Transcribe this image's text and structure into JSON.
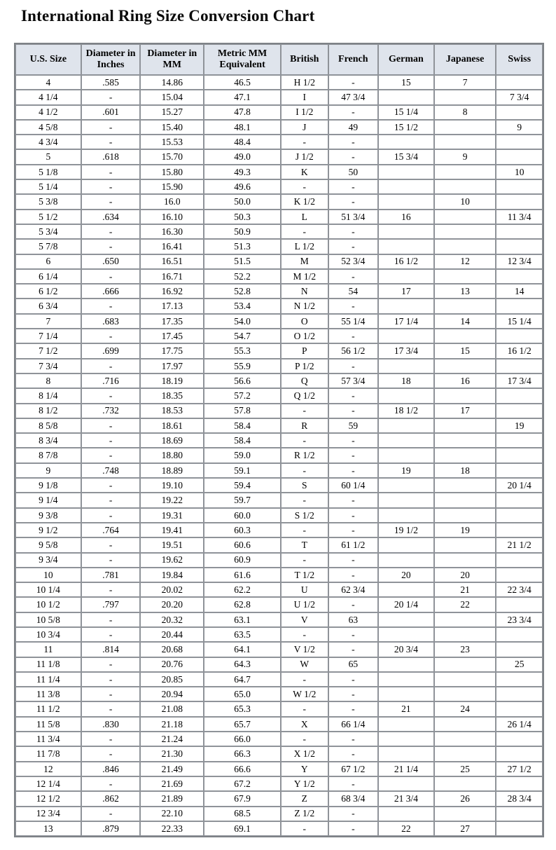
{
  "title": "International Ring Size Conversion Chart",
  "colors": {
    "header_background": "#dfe4ec",
    "grid_border": "#8f9399",
    "text": "#000000"
  },
  "chart_data": {
    "type": "table",
    "title": "International Ring Size Conversion Chart",
    "columns": [
      "U.S. Size",
      "Diameter in Inches",
      "Diameter in MM",
      "Metric MM Equivalent",
      "British",
      "French",
      "German",
      "Japanese",
      "Swiss"
    ],
    "rows": [
      [
        "4",
        ".585",
        "14.86",
        "46.5",
        "H 1/2",
        "-",
        "15",
        "7",
        ""
      ],
      [
        "4 1/4",
        "-",
        "15.04",
        "47.1",
        "I",
        "47 3/4",
        "",
        "",
        "7 3/4"
      ],
      [
        "4 1/2",
        ".601",
        "15.27",
        "47.8",
        "I 1/2",
        "-",
        "15 1/4",
        "8",
        ""
      ],
      [
        "4 5/8",
        "-",
        "15.40",
        "48.1",
        "J",
        "49",
        "15 1/2",
        "",
        "9"
      ],
      [
        "4 3/4",
        "-",
        "15.53",
        "48.4",
        "-",
        "-",
        "",
        "",
        ""
      ],
      [
        "5",
        ".618",
        "15.70",
        "49.0",
        "J 1/2",
        "-",
        "15 3/4",
        "9",
        ""
      ],
      [
        "5 1/8",
        "-",
        "15.80",
        "49.3",
        "K",
        "50",
        "",
        "",
        "10"
      ],
      [
        "5 1/4",
        "-",
        "15.90",
        "49.6",
        "-",
        "-",
        "",
        "",
        ""
      ],
      [
        "5 3/8",
        "-",
        "16.0",
        "50.0",
        "K 1/2",
        "-",
        "",
        "10",
        ""
      ],
      [
        "5 1/2",
        ".634",
        "16.10",
        "50.3",
        "L",
        "51 3/4",
        "16",
        "",
        "11 3/4"
      ],
      [
        "5 3/4",
        "-",
        "16.30",
        "50.9",
        "-",
        "-",
        "",
        "",
        ""
      ],
      [
        "5 7/8",
        "-",
        "16.41",
        "51.3",
        "L 1/2",
        "-",
        "",
        "",
        ""
      ],
      [
        "6",
        ".650",
        "16.51",
        "51.5",
        "M",
        "52 3/4",
        "16 1/2",
        "12",
        "12 3/4"
      ],
      [
        "6 1/4",
        "-",
        "16.71",
        "52.2",
        "M 1/2",
        "-",
        "",
        "",
        ""
      ],
      [
        "6 1/2",
        ".666",
        "16.92",
        "52.8",
        "N",
        "54",
        "17",
        "13",
        "14"
      ],
      [
        "6 3/4",
        "-",
        "17.13",
        "53.4",
        "N 1/2",
        "-",
        "",
        "",
        ""
      ],
      [
        "7",
        ".683",
        "17.35",
        "54.0",
        "O",
        "55 1/4",
        "17 1/4",
        "14",
        "15 1/4"
      ],
      [
        "7 1/4",
        "-",
        "17.45",
        "54.7",
        "O 1/2",
        "-",
        "",
        "",
        ""
      ],
      [
        "7 1/2",
        ".699",
        "17.75",
        "55.3",
        "P",
        "56 1/2",
        "17 3/4",
        "15",
        "16 1/2"
      ],
      [
        "7 3/4",
        "-",
        "17.97",
        "55.9",
        "P 1/2",
        "-",
        "",
        "",
        ""
      ],
      [
        "8",
        ".716",
        "18.19",
        "56.6",
        "Q",
        "57 3/4",
        "18",
        "16",
        "17 3/4"
      ],
      [
        "8 1/4",
        "-",
        "18.35",
        "57.2",
        "Q 1/2",
        "-",
        "",
        "",
        ""
      ],
      [
        "8 1/2",
        ".732",
        "18.53",
        "57.8",
        "-",
        "-",
        "18 1/2",
        "17",
        ""
      ],
      [
        "8 5/8",
        "-",
        "18.61",
        "58.4",
        "R",
        "59",
        "",
        "",
        "19"
      ],
      [
        "8 3/4",
        "-",
        "18.69",
        "58.4",
        "-",
        "-",
        "",
        "",
        ""
      ],
      [
        "8 7/8",
        "-",
        "18.80",
        "59.0",
        "R 1/2",
        "-",
        "",
        "",
        ""
      ],
      [
        "9",
        ".748",
        "18.89",
        "59.1",
        "-",
        "-",
        "19",
        "18",
        ""
      ],
      [
        "9 1/8",
        "-",
        "19.10",
        "59.4",
        "S",
        "60 1/4",
        "",
        "",
        "20 1/4"
      ],
      [
        "9 1/4",
        "-",
        "19.22",
        "59.7",
        "-",
        "-",
        "",
        "",
        ""
      ],
      [
        "9 3/8",
        "-",
        "19.31",
        "60.0",
        "S 1/2",
        "-",
        "",
        "",
        ""
      ],
      [
        "9 1/2",
        ".764",
        "19.41",
        "60.3",
        "-",
        "-",
        "19 1/2",
        "19",
        ""
      ],
      [
        "9 5/8",
        "-",
        "19.51",
        "60.6",
        "T",
        "61 1/2",
        "",
        "",
        "21 1/2"
      ],
      [
        "9 3/4",
        "-",
        "19.62",
        "60.9",
        "-",
        "-",
        "",
        "",
        ""
      ],
      [
        "10",
        ".781",
        "19.84",
        "61.6",
        "T 1/2",
        "-",
        "20",
        "20",
        ""
      ],
      [
        "10 1/4",
        "-",
        "20.02",
        "62.2",
        "U",
        "62 3/4",
        "",
        "21",
        "22 3/4"
      ],
      [
        "10 1/2",
        ".797",
        "20.20",
        "62.8",
        "U 1/2",
        "-",
        "20 1/4",
        "22",
        ""
      ],
      [
        "10 5/8",
        "-",
        "20.32",
        "63.1",
        "V",
        "63",
        "",
        "",
        "23 3/4"
      ],
      [
        "10 3/4",
        "-",
        "20.44",
        "63.5",
        "-",
        "-",
        "",
        "",
        ""
      ],
      [
        "11",
        ".814",
        "20.68",
        "64.1",
        "V 1/2",
        "-",
        "20 3/4",
        "23",
        ""
      ],
      [
        "11 1/8",
        "-",
        "20.76",
        "64.3",
        "W",
        "65",
        "",
        "",
        "25"
      ],
      [
        "11 1/4",
        "-",
        "20.85",
        "64.7",
        "-",
        "-",
        "",
        "",
        ""
      ],
      [
        "11 3/8",
        "-",
        "20.94",
        "65.0",
        "W 1/2",
        "-",
        "",
        "",
        ""
      ],
      [
        "11 1/2",
        "-",
        "21.08",
        "65.3",
        "-",
        "-",
        "21",
        "24",
        ""
      ],
      [
        "11 5/8",
        ".830",
        "21.18",
        "65.7",
        "X",
        "66 1/4",
        "",
        "",
        "26 1/4"
      ],
      [
        "11 3/4",
        "-",
        "21.24",
        "66.0",
        "-",
        "-",
        "",
        "",
        ""
      ],
      [
        "11 7/8",
        "-",
        "21.30",
        "66.3",
        "X 1/2",
        "-",
        "",
        "",
        ""
      ],
      [
        "12",
        ".846",
        "21.49",
        "66.6",
        "Y",
        "67 1/2",
        "21 1/4",
        "25",
        "27 1/2"
      ],
      [
        "12 1/4",
        "-",
        "21.69",
        "67.2",
        "Y 1/2",
        "-",
        "",
        "",
        ""
      ],
      [
        "12 1/2",
        ".862",
        "21.89",
        "67.9",
        "Z",
        "68 3/4",
        "21 3/4",
        "26",
        "28 3/4"
      ],
      [
        "12 3/4",
        "-",
        "22.10",
        "68.5",
        "Z 1/2",
        "-",
        "",
        "",
        ""
      ],
      [
        "13",
        ".879",
        "22.33",
        "69.1",
        "-",
        "-",
        "22",
        "27",
        ""
      ]
    ]
  }
}
